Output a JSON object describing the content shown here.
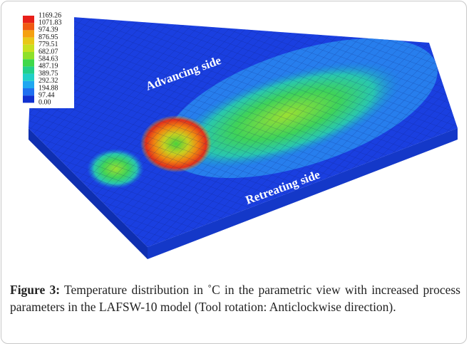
{
  "figure": {
    "legend": {
      "levels": [
        "1169.26",
        "1071.83",
        "974.39",
        "876.95",
        "779.51",
        "682.07",
        "584.63",
        "487.19",
        "389.75",
        "292.32",
        "194.88",
        "97.44",
        "0.00"
      ]
    },
    "annotations": [
      "Advancing side",
      "Retreating side"
    ],
    "caption": {
      "label": "Figure 3:",
      "text": "Temperature distribution in ˚C in the parametric view with increased process parameters in the LAFSW-10 model (Tool rotation: Anticlockwise direction)."
    }
  }
}
